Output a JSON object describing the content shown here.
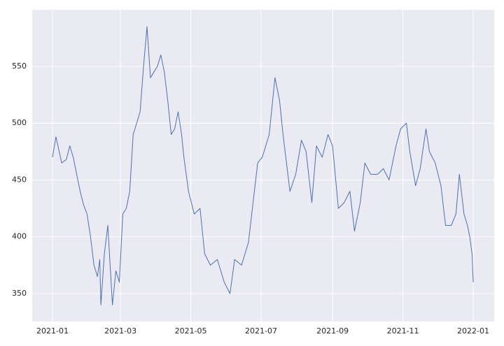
{
  "chart_data": {
    "type": "line",
    "x": [
      0,
      3,
      8,
      12,
      15,
      18,
      21,
      24,
      27,
      30,
      33,
      36,
      39,
      41,
      42,
      45,
      48,
      52,
      55,
      58,
      61,
      64,
      67,
      70,
      73,
      76,
      79,
      82,
      85,
      88,
      91,
      94,
      97,
      100,
      103,
      106,
      109,
      112,
      114,
      118,
      123,
      128,
      132,
      137,
      143,
      149,
      154,
      158,
      164,
      170,
      174,
      178,
      182,
      188,
      193,
      197,
      200,
      203,
      206,
      211,
      216,
      220,
      225,
      229,
      234,
      239,
      243,
      248,
      253,
      258,
      262,
      267,
      271,
      276,
      282,
      287,
      292,
      298,
      302,
      307,
      310,
      315,
      319,
      324,
      327,
      332,
      337,
      341,
      346,
      350,
      353,
      357,
      360,
      362,
      364,
      365
    ],
    "series": [
      {
        "color": "#4c72b0",
        "values": [
          470,
          488,
          465,
          468,
          480,
          470,
          455,
          440,
          428,
          420,
          400,
          375,
          365,
          380,
          340,
          385,
          410,
          340,
          370,
          360,
          420,
          425,
          440,
          490,
          500,
          510,
          550,
          585,
          540,
          545,
          550,
          560,
          545,
          520,
          490,
          495,
          510,
          490,
          470,
          440,
          420,
          425,
          385,
          375,
          380,
          360,
          350,
          380,
          375,
          395,
          430,
          465,
          470,
          490,
          540,
          520,
          490,
          465,
          440,
          455,
          485,
          475,
          430,
          480,
          470,
          490,
          480,
          425,
          430,
          440,
          405,
          430,
          465,
          455,
          455,
          460,
          450,
          480,
          495,
          500,
          475,
          445,
          460,
          495,
          475,
          465,
          445,
          410,
          410,
          420,
          455,
          420,
          410,
          400,
          385,
          360
        ]
      }
    ],
    "xlim": [
      -17.6,
      383.2
    ],
    "xticks": [
      {
        "value": 0,
        "label": "2021-01"
      },
      {
        "value": 59,
        "label": "2021-03"
      },
      {
        "value": 120,
        "label": "2021-05"
      },
      {
        "value": 181,
        "label": "2021-07"
      },
      {
        "value": 243,
        "label": "2021-09"
      },
      {
        "value": 304,
        "label": "2021-11"
      },
      {
        "value": 365,
        "label": "2022-01"
      }
    ],
    "ylim": [
      325.4,
      599.8
    ],
    "yticks": [
      350,
      400,
      450,
      500,
      550
    ],
    "grid": true,
    "background": "#eaeaf2"
  }
}
